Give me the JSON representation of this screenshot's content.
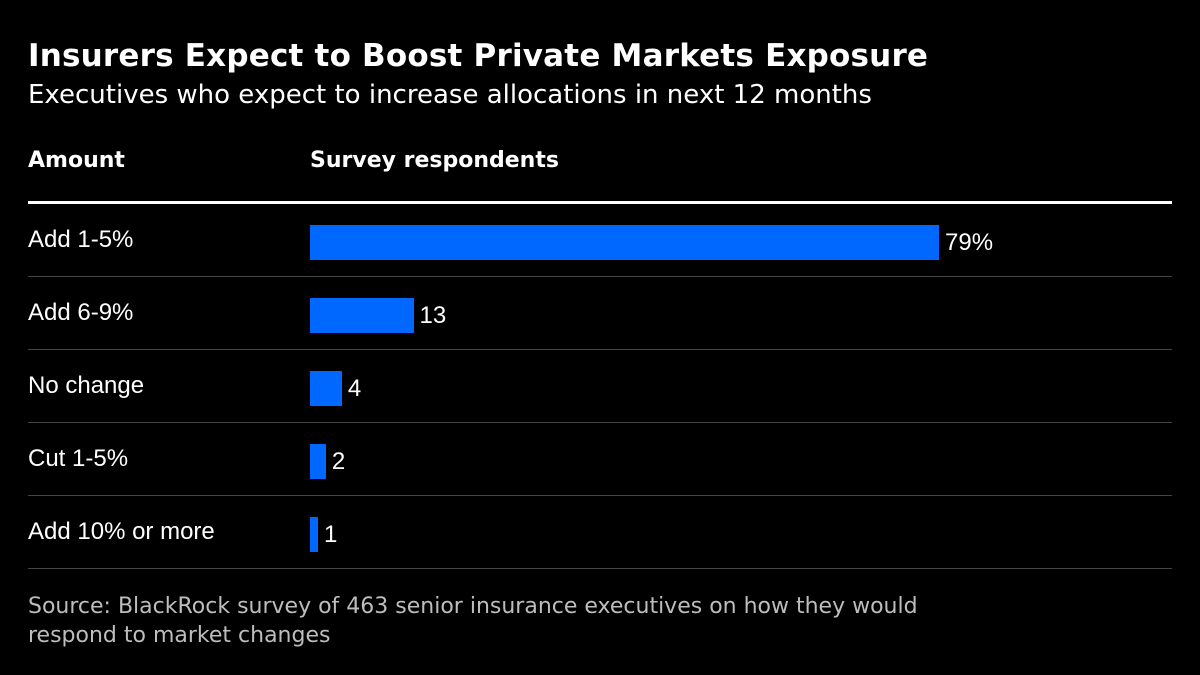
{
  "header": {
    "title": "Insurers Expect to Boost Private Markets Exposure",
    "subtitle": "Executives who expect to increase allocations in next 12 months"
  },
  "columns": {
    "amount": "Amount",
    "respondents": "Survey respondents"
  },
  "footer": {
    "source": "Source: BlackRock survey of 463 senior insurance executives on how they would respond to market changes"
  },
  "colors": {
    "background": "#000000",
    "bar": "#0068ff",
    "text": "#ffffff"
  },
  "chart_data": {
    "type": "bar",
    "orientation": "horizontal",
    "categories": [
      "Add 1-5%",
      "Add 6-9%",
      "No change",
      "Cut 1-5%",
      "Add 10% or more"
    ],
    "values": [
      79,
      13,
      4,
      2,
      1
    ],
    "value_labels": [
      "79%",
      "13",
      "4",
      "2",
      "1"
    ],
    "xlim": [
      0,
      100
    ],
    "grid": false,
    "legend": "none"
  }
}
